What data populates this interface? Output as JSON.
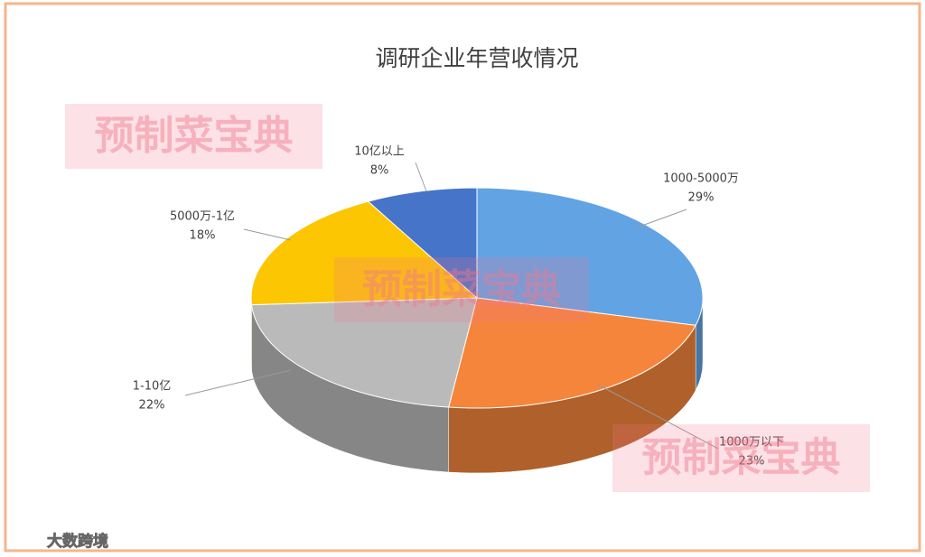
{
  "chart_data": {
    "type": "pie",
    "style": "3d",
    "title": "调研企业年营收情况",
    "categories": [
      "1000-5000万",
      "1000万以下",
      "1-10亿",
      "5000万-1亿",
      "10亿以上"
    ],
    "values": [
      29,
      23,
      22,
      18,
      8
    ],
    "value_labels": [
      "29%",
      "23%",
      "22%",
      "18%",
      "8%"
    ],
    "colors": [
      "#62a3e4",
      "#f5853b",
      "#bababa",
      "#fcc602",
      "#4674c8"
    ],
    "watermark": "预制菜宝典",
    "source": "大数跨境"
  }
}
